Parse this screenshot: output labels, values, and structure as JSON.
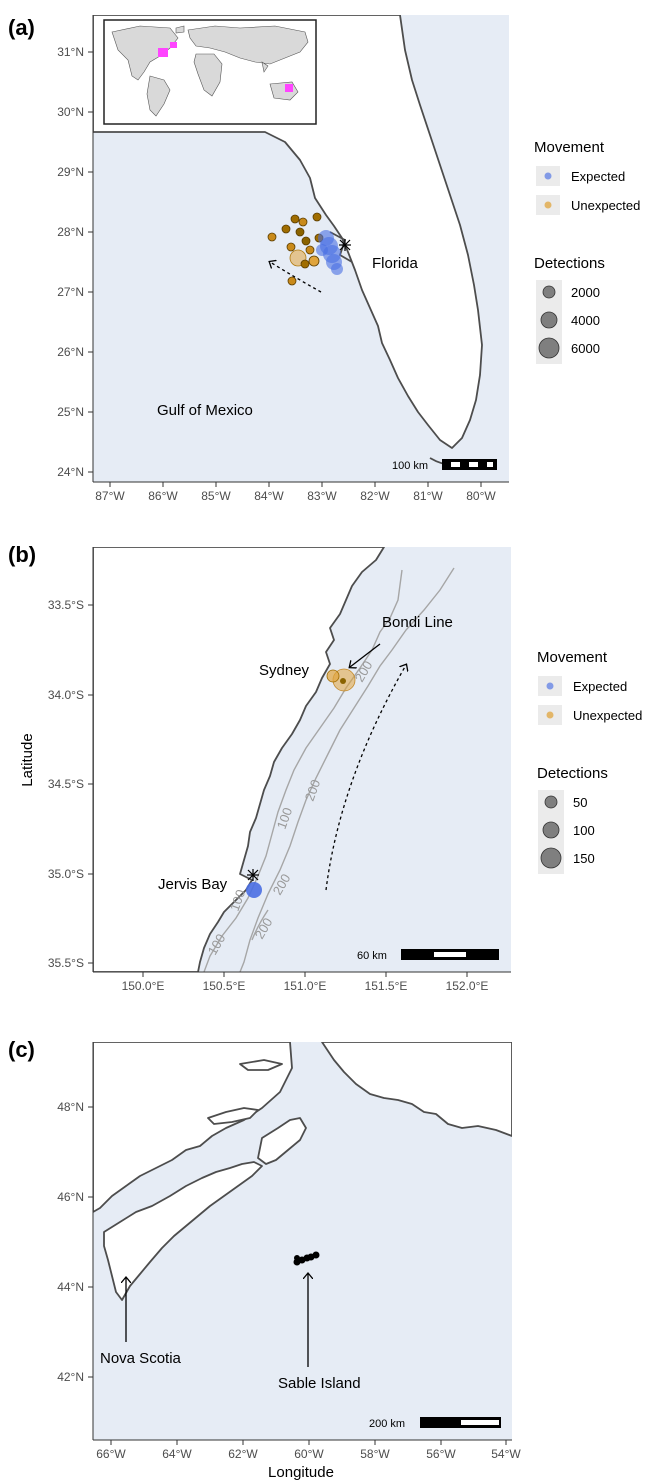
{
  "colors": {
    "sea": "#e6ecf5",
    "land": "#ffffff",
    "coast": "#4d4d4d",
    "expected": "#4a6fe3",
    "unexpected": "#e0a43c",
    "unexpected_dark": "#8a6300",
    "inset_land": "#d9d9d9",
    "inset_highlight": "#ff44ff",
    "contour": "#a6a6a6"
  },
  "panel_a": {
    "label": "(a)",
    "lat_ticks": [
      "31°N",
      "30°N",
      "29°N",
      "28°N",
      "27°N",
      "26°N",
      "25°N",
      "24°N"
    ],
    "lon_ticks": [
      "87°W",
      "86°W",
      "85°W",
      "84°W",
      "83°W",
      "82°W",
      "81°W",
      "80°W"
    ],
    "place_labels": {
      "florida": "Florida",
      "gulf": "Gulf of Mexico"
    },
    "scale_bar": "100 km",
    "legend": {
      "movement_title": "Movement",
      "expected": "Expected",
      "unexpected": "Unexpected",
      "detections_title": "Detections",
      "sizes": [
        "2000",
        "4000",
        "6000"
      ]
    }
  },
  "panel_b": {
    "label": "(b)",
    "lat_ticks": [
      "33.5°S",
      "34.0°S",
      "34.5°S",
      "35.0°S",
      "35.5°S"
    ],
    "lon_ticks": [
      "150.0°E",
      "150.5°E",
      "151.0°E",
      "151.5°E",
      "152.0°E"
    ],
    "place_labels": {
      "sydney": "Sydney",
      "bondi": "Bondi Line",
      "jervis": "Jervis Bay"
    },
    "contours": [
      "100",
      "200"
    ],
    "scale_bar": "60 km",
    "y_axis_title": "Latitude",
    "legend": {
      "movement_title": "Movement",
      "expected": "Expected",
      "unexpected": "Unexpected",
      "detections_title": "Detections",
      "sizes": [
        "50",
        "100",
        "150"
      ]
    }
  },
  "panel_c": {
    "label": "(c)",
    "lat_ticks": [
      "48°N",
      "46°N",
      "44°N",
      "42°N"
    ],
    "lon_ticks": [
      "66°W",
      "64°W",
      "62°W",
      "60°W",
      "58°W",
      "56°W",
      "54°W"
    ],
    "place_labels": {
      "nova_scotia": "Nova Scotia",
      "sable": "Sable Island"
    },
    "scale_bar": "200 km",
    "x_axis_title": "Longitude"
  }
}
